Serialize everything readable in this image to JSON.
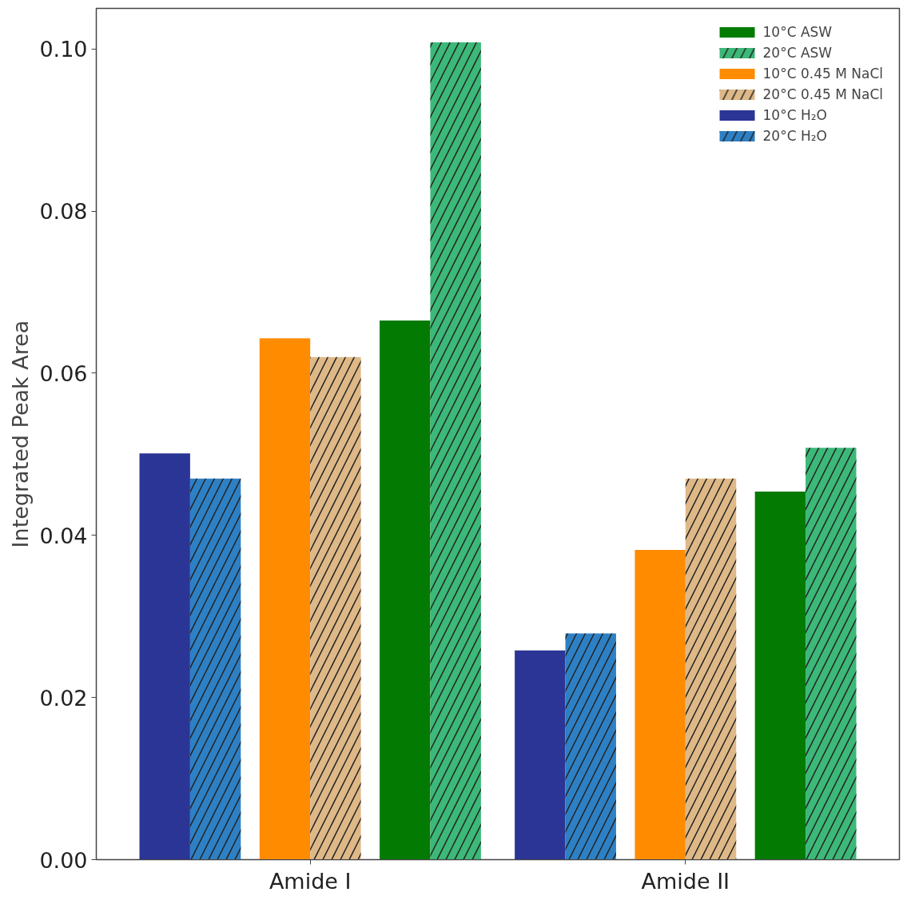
{
  "chart_data": {
    "type": "bar",
    "ylabel": "Integrated Peak Area",
    "categories": [
      "Amide I",
      "Amide II"
    ],
    "series": [
      {
        "name": "10°C ASW",
        "color": "#037b03",
        "values": [
          0.0665,
          0.0454
        ]
      },
      {
        "name": "20°C ASW",
        "color": "#3cb878",
        "values": [
          0.1008,
          0.0508
        ]
      },
      {
        "name": "10°C 0.45 M NaCl",
        "color": "#ff8c00",
        "values": [
          0.0643,
          0.0382
        ]
      },
      {
        "name": "20°C 0.45 M NaCl",
        "color": "#deb887",
        "values": [
          0.062,
          0.047
        ]
      },
      {
        "name": "10°C H₂O",
        "color": "#2b3595",
        "values": [
          0.0501,
          0.0258
        ]
      },
      {
        "name": "20°C H₂O",
        "color": "#2e80c4",
        "values": [
          0.047,
          0.0279
        ]
      }
    ],
    "ylim": [
      0,
      0.105
    ],
    "yticks": [
      {
        "value": 0,
        "label": "0.00"
      },
      {
        "value": 0.02,
        "label": "0.02"
      },
      {
        "value": 0.04,
        "label": "0.04"
      },
      {
        "value": 0.06,
        "label": "0.06"
      },
      {
        "value": 0.08,
        "label": "0.08"
      },
      {
        "value": 0.1,
        "label": "0.10"
      }
    ],
    "grid": false,
    "legend": "top right"
  }
}
